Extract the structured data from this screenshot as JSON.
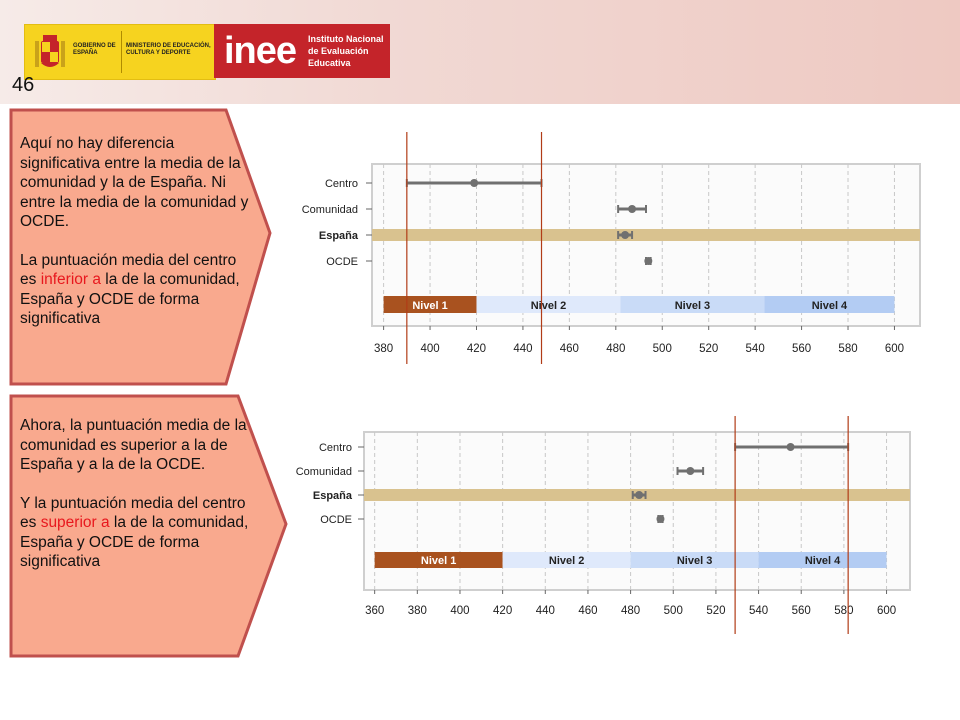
{
  "header": {
    "gob_label": "GOBIERNO DE ESPAÑA",
    "ministry_label": "MINISTERIO DE EDUCACIÓN, CULTURA Y DEPORTE",
    "inee_word": "inee",
    "inee_label": "Instituto Nacional de Evaluación Educativa",
    "brand_color": "#c4242a",
    "gob_color": "#f6d31f"
  },
  "page_number": "46",
  "callout1": {
    "para1": "Aquí no hay diferencia significativa entre la media de la comunidad  y la de España. Ni entre la media de la comunidad y OCDE.",
    "para2_before": "La puntuación media del centro es ",
    "para2_highlight": "inferior a",
    "para2_after": " la de la comunidad, España y OCDE de forma significativa"
  },
  "callout2": {
    "para1": "Ahora, la puntuación media de la comunidad es superior a la de España y a la de la OCDE.",
    "para2_before": "Y la puntuación media del centro es ",
    "para2_highlight": "superior a",
    "para2_after": " la de la comunidad, España y OCDE de forma significativa"
  },
  "colors": {
    "callout_fill": "#f9a98e",
    "callout_border": "#c0504d",
    "highlight": "#e8181e",
    "ref_line": "#b13c17",
    "espana_band": "#d9c28f",
    "point": "#707070"
  },
  "chart_data": [
    {
      "type": "scatter",
      "title": "",
      "categories": [
        "Centro",
        "Comunidad",
        "España",
        "OCDE"
      ],
      "points": [
        {
          "label": "Centro",
          "x": 419,
          "lo": 390,
          "hi": 448
        },
        {
          "label": "Comunidad",
          "x": 487,
          "lo": 481,
          "hi": 493
        },
        {
          "label": "España",
          "x": 484,
          "lo": 481,
          "hi": 487
        },
        {
          "label": "OCDE",
          "x": 494,
          "lo": 493,
          "hi": 495
        }
      ],
      "x_ticks": [
        380,
        400,
        420,
        440,
        460,
        480,
        500,
        520,
        540,
        560,
        580,
        600
      ],
      "xlim": [
        375,
        611
      ],
      "levels": [
        {
          "name": "Nivel 1",
          "from": 380,
          "to": 420,
          "color": "#a9521f"
        },
        {
          "name": "Nivel 2",
          "from": 420,
          "to": 482,
          "color": "#dfe9fb"
        },
        {
          "name": "Nivel 3",
          "from": 482,
          "to": 544,
          "color": "#c9dbf7"
        },
        {
          "name": "Nivel 4",
          "from": 544,
          "to": 600,
          "color": "#b3ccf3"
        }
      ],
      "ref_lines": [
        390,
        448
      ],
      "grid": true
    },
    {
      "type": "scatter",
      "title": "",
      "categories": [
        "Centro",
        "Comunidad",
        "España",
        "OCDE"
      ],
      "points": [
        {
          "label": "Centro",
          "x": 555,
          "lo": 529,
          "hi": 582
        },
        {
          "label": "Comunidad",
          "x": 508,
          "lo": 502,
          "hi": 514
        },
        {
          "label": "España",
          "x": 484,
          "lo": 481,
          "hi": 487
        },
        {
          "label": "OCDE",
          "x": 494,
          "lo": 493,
          "hi": 495
        }
      ],
      "x_ticks": [
        360,
        380,
        400,
        420,
        440,
        460,
        480,
        500,
        520,
        540,
        560,
        580,
        600
      ],
      "xlim": [
        355,
        611
      ],
      "levels": [
        {
          "name": "Nivel 1",
          "from": 360,
          "to": 420,
          "color": "#a9521f"
        },
        {
          "name": "Nivel 2",
          "from": 420,
          "to": 480,
          "color": "#dfe9fb"
        },
        {
          "name": "Nivel 3",
          "from": 480,
          "to": 540,
          "color": "#c9dbf7"
        },
        {
          "name": "Nivel 4",
          "from": 540,
          "to": 600,
          "color": "#b3ccf3"
        }
      ],
      "ref_lines": [
        529,
        582
      ],
      "grid": true
    }
  ]
}
